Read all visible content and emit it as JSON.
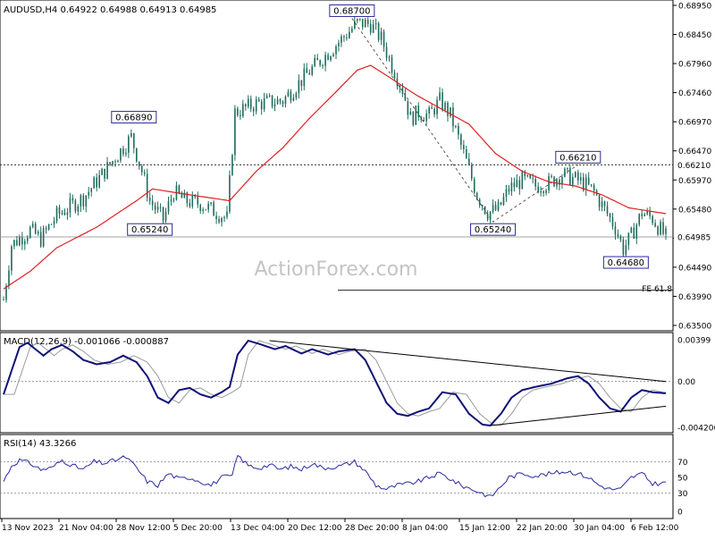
{
  "chart_data": {
    "type": "candlestick",
    "symbol_header": "AUDUSD,H4  0.64922 0.64988 0.64913 0.64985",
    "watermark": "ActionForex.com",
    "price_axis": {
      "range": [
        0.6345,
        0.6895
      ],
      "ticks": [
        "0.68950",
        "0.68450",
        "0.67960",
        "0.67460",
        "0.66970",
        "0.66470",
        "0.65970",
        "0.65480",
        "0.64980",
        "0.64490",
        "0.63990",
        "0.63500"
      ],
      "current_price_label": "0.64985",
      "level_label": "0.66210"
    },
    "x_axis_labels": [
      "13 Nov 2023",
      "21 Nov 04:00",
      "28 Nov 12:00",
      "5 Dec 20:00",
      "13 Dec 04:00",
      "20 Dec 12:00",
      "28 Dec 20:00",
      "8 Jan 04:00",
      "15 Jan 12:00",
      "22 Jan 20:00",
      "30 Jan 04:00",
      "6 Feb 12:00"
    ],
    "price_anchors": [
      [
        0,
        0.6392
      ],
      [
        3,
        0.6485
      ],
      [
        10,
        0.651
      ],
      [
        14,
        0.6495
      ],
      [
        20,
        0.6535
      ],
      [
        30,
        0.6565
      ],
      [
        38,
        0.661
      ],
      [
        44,
        0.6645
      ],
      [
        48,
        0.6668
      ],
      [
        52,
        0.661
      ],
      [
        55,
        0.656
      ],
      [
        60,
        0.6528
      ],
      [
        64,
        0.6575
      ],
      [
        68,
        0.656
      ],
      [
        74,
        0.6555
      ],
      [
        78,
        0.6545
      ],
      [
        84,
        0.653
      ],
      [
        87,
        0.671
      ],
      [
        95,
        0.6725
      ],
      [
        105,
        0.673
      ],
      [
        115,
        0.678
      ],
      [
        125,
        0.6825
      ],
      [
        133,
        0.6862
      ],
      [
        138,
        0.686
      ],
      [
        142,
        0.6835
      ],
      [
        146,
        0.679
      ],
      [
        150,
        0.675
      ],
      [
        153,
        0.67
      ],
      [
        156,
        0.671
      ],
      [
        160,
        0.6705
      ],
      [
        164,
        0.673
      ],
      [
        168,
        0.6705
      ],
      [
        173,
        0.664
      ],
      [
        178,
        0.657
      ],
      [
        182,
        0.654
      ],
      [
        186,
        0.6545
      ],
      [
        190,
        0.658
      ],
      [
        195,
        0.6595
      ],
      [
        200,
        0.6585
      ],
      [
        205,
        0.659
      ],
      [
        210,
        0.6605
      ],
      [
        214,
        0.6598
      ],
      [
        218,
        0.659
      ],
      [
        222,
        0.6575
      ],
      [
        226,
        0.6545
      ],
      [
        230,
        0.6515
      ],
      [
        233,
        0.6478
      ],
      [
        236,
        0.65
      ],
      [
        240,
        0.654
      ],
      [
        244,
        0.653
      ],
      [
        247,
        0.651
      ],
      [
        249,
        0.6498
      ]
    ],
    "moving_average_anchors": [
      [
        0,
        0.641
      ],
      [
        10,
        0.644
      ],
      [
        20,
        0.648
      ],
      [
        35,
        0.6515
      ],
      [
        50,
        0.656
      ],
      [
        56,
        0.658
      ],
      [
        70,
        0.657
      ],
      [
        85,
        0.656
      ],
      [
        95,
        0.661
      ],
      [
        105,
        0.665
      ],
      [
        115,
        0.67
      ],
      [
        125,
        0.6745
      ],
      [
        133,
        0.6782
      ],
      [
        138,
        0.679
      ],
      [
        145,
        0.677
      ],
      [
        155,
        0.674
      ],
      [
        165,
        0.6715
      ],
      [
        175,
        0.669
      ],
      [
        185,
        0.664
      ],
      [
        195,
        0.661
      ],
      [
        205,
        0.6592
      ],
      [
        215,
        0.6585
      ],
      [
        225,
        0.657
      ],
      [
        235,
        0.6548
      ],
      [
        249,
        0.6538
      ]
    ],
    "annotations": [
      {
        "text": "0.66890",
        "bar": 49,
        "price": 0.6689,
        "dir": "up"
      },
      {
        "text": "0.65240",
        "bar": 55,
        "price": 0.6524,
        "dir": "down"
      },
      {
        "text": "0.68700",
        "bar": 131,
        "price": 0.687,
        "dir": "up"
      },
      {
        "text": "0.65240",
        "bar": 184,
        "price": 0.6524,
        "dir": "down"
      },
      {
        "text": "0.66210",
        "bar": 216,
        "price": 0.6621,
        "dir": "up"
      },
      {
        "text": "0.64680",
        "bar": 234,
        "price": 0.6468,
        "dir": "down"
      }
    ],
    "fib_label": "FE 61.8",
    "fib_level": 0.6408,
    "dotted_level": 0.6621,
    "projection": [
      [
        131,
        0.687
      ],
      [
        184,
        0.6524
      ],
      [
        216,
        0.6621
      ]
    ],
    "macd": {
      "header": "MACD(12,26,9) -0.001066 -0.000887",
      "range": [
        -0.0046,
        0.0043
      ],
      "ticks": [
        "0.00399",
        "0.00",
        "-0.004206"
      ],
      "macd_anchors": [
        [
          0,
          -0.0012
        ],
        [
          3,
          0.001
        ],
        [
          6,
          0.0032
        ],
        [
          9,
          0.0036
        ],
        [
          12,
          0.003
        ],
        [
          15,
          0.0024
        ],
        [
          18,
          0.003
        ],
        [
          22,
          0.0034
        ],
        [
          26,
          0.0028
        ],
        [
          30,
          0.002
        ],
        [
          35,
          0.0016
        ],
        [
          40,
          0.0018
        ],
        [
          45,
          0.0024
        ],
        [
          50,
          0.0018
        ],
        [
          54,
          0.0005
        ],
        [
          58,
          -0.0015
        ],
        [
          62,
          -0.002
        ],
        [
          66,
          -0.0008
        ],
        [
          70,
          -0.0006
        ],
        [
          74,
          -0.0012
        ],
        [
          78,
          -0.0015
        ],
        [
          82,
          -0.001
        ],
        [
          85,
          -0.0005
        ],
        [
          88,
          0.0025
        ],
        [
          92,
          0.0038
        ],
        [
          96,
          0.0035
        ],
        [
          102,
          0.003
        ],
        [
          106,
          0.0033
        ],
        [
          112,
          0.0026
        ],
        [
          116,
          0.003
        ],
        [
          122,
          0.0025
        ],
        [
          126,
          0.0028
        ],
        [
          132,
          0.003
        ],
        [
          136,
          0.002
        ],
        [
          140,
          0.0
        ],
        [
          144,
          -0.002
        ],
        [
          148,
          -0.003
        ],
        [
          152,
          -0.0032
        ],
        [
          156,
          -0.0028
        ],
        [
          160,
          -0.0025
        ],
        [
          165,
          -0.001
        ],
        [
          170,
          -0.0012
        ],
        [
          175,
          -0.003
        ],
        [
          180,
          -0.004
        ],
        [
          183,
          -0.0041
        ],
        [
          187,
          -0.003
        ],
        [
          191,
          -0.0015
        ],
        [
          195,
          -0.0008
        ],
        [
          200,
          -0.0005
        ],
        [
          206,
          -0.0002
        ],
        [
          212,
          0.0003
        ],
        [
          216,
          0.0005
        ],
        [
          220,
          -0.0002
        ],
        [
          224,
          -0.0015
        ],
        [
          228,
          -0.0025
        ],
        [
          232,
          -0.0028
        ],
        [
          236,
          -0.0015
        ],
        [
          240,
          -0.0008
        ],
        [
          244,
          -0.001
        ],
        [
          249,
          -0.0011
        ]
      ],
      "trend_upper": [
        [
          100,
          0.0038
        ],
        [
          249,
          0.0
        ]
      ],
      "trend_lower": [
        [
          183,
          -0.0041
        ],
        [
          249,
          -0.0023
        ]
      ]
    },
    "rsi": {
      "header": "RSI(14) 43.3266",
      "range": [
        0,
        100
      ],
      "ticks": [
        "70",
        "50",
        "30",
        "0"
      ],
      "levels": [
        70,
        30
      ],
      "rsi_anchors": [
        [
          0,
          45
        ],
        [
          3,
          65
        ],
        [
          6,
          72
        ],
        [
          10,
          68
        ],
        [
          14,
          60
        ],
        [
          18,
          62
        ],
        [
          22,
          72
        ],
        [
          26,
          65
        ],
        [
          30,
          60
        ],
        [
          34,
          70
        ],
        [
          38,
          68
        ],
        [
          42,
          72
        ],
        [
          46,
          76
        ],
        [
          50,
          62
        ],
        [
          54,
          45
        ],
        [
          58,
          40
        ],
        [
          62,
          55
        ],
        [
          66,
          48
        ],
        [
          70,
          50
        ],
        [
          74,
          45
        ],
        [
          78,
          40
        ],
        [
          82,
          50
        ],
        [
          86,
          52
        ],
        [
          88,
          78
        ],
        [
          92,
          65
        ],
        [
          96,
          62
        ],
        [
          100,
          66
        ],
        [
          104,
          60
        ],
        [
          108,
          64
        ],
        [
          112,
          60
        ],
        [
          116,
          68
        ],
        [
          120,
          62
        ],
        [
          126,
          64
        ],
        [
          132,
          70
        ],
        [
          136,
          58
        ],
        [
          140,
          40
        ],
        [
          144,
          35
        ],
        [
          148,
          40
        ],
        [
          152,
          42
        ],
        [
          156,
          45
        ],
        [
          160,
          50
        ],
        [
          164,
          55
        ],
        [
          168,
          48
        ],
        [
          172,
          40
        ],
        [
          176,
          35
        ],
        [
          180,
          30
        ],
        [
          183,
          25
        ],
        [
          186,
          35
        ],
        [
          190,
          50
        ],
        [
          195,
          55
        ],
        [
          200,
          52
        ],
        [
          206,
          55
        ],
        [
          212,
          58
        ],
        [
          216,
          55
        ],
        [
          220,
          50
        ],
        [
          224,
          40
        ],
        [
          228,
          35
        ],
        [
          232,
          35
        ],
        [
          236,
          50
        ],
        [
          240,
          55
        ],
        [
          244,
          42
        ],
        [
          249,
          43
        ]
      ]
    }
  }
}
